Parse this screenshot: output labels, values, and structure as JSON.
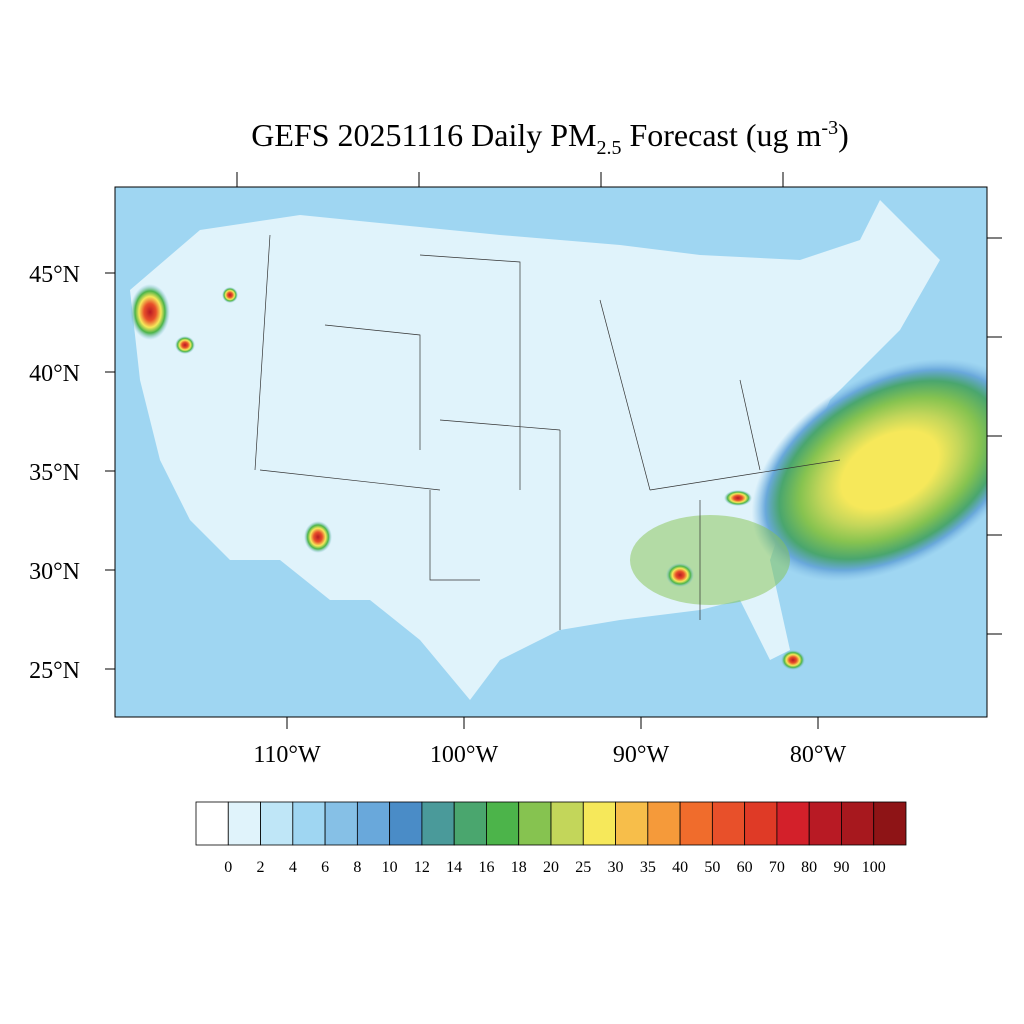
{
  "map": {
    "title": {
      "main": "GEFS 20251116 Daily PM",
      "sub": "2.5",
      "middle": " Forecast (ug m",
      "sup": "-3",
      "end": ")"
    },
    "lat_ticks": [
      {
        "value": 45,
        "label": "45°N"
      },
      {
        "value": 40,
        "label": "40°N"
      },
      {
        "value": 35,
        "label": "35°N"
      },
      {
        "value": 30,
        "label": "30°N"
      },
      {
        "value": 25,
        "label": "25°N"
      }
    ],
    "lon_ticks": [
      {
        "value": -110,
        "label": "110°W"
      },
      {
        "value": -100,
        "label": "100°W"
      },
      {
        "value": -90,
        "label": "90°W"
      },
      {
        "value": -80,
        "label": "80°W"
      }
    ],
    "colorbar": {
      "levels": [
        0,
        2,
        4,
        6,
        8,
        10,
        12,
        14,
        16,
        18,
        20,
        25,
        30,
        35,
        40,
        50,
        60,
        70,
        80,
        90,
        100
      ],
      "colors": [
        "#ffffff",
        "#e0f3fb",
        "#bfe6f7",
        "#9fd6f2",
        "#86c0e6",
        "#69a8db",
        "#4a8cc7",
        "#4a9a9a",
        "#4aa66e",
        "#4cb44a",
        "#86c350",
        "#c3d65a",
        "#f6e85a",
        "#f7be4a",
        "#f59a3a",
        "#f06c2c",
        "#e8502a",
        "#df3a26",
        "#d3202a",
        "#b81a24",
        "#a7181e",
        "#8e1416"
      ]
    }
  }
}
